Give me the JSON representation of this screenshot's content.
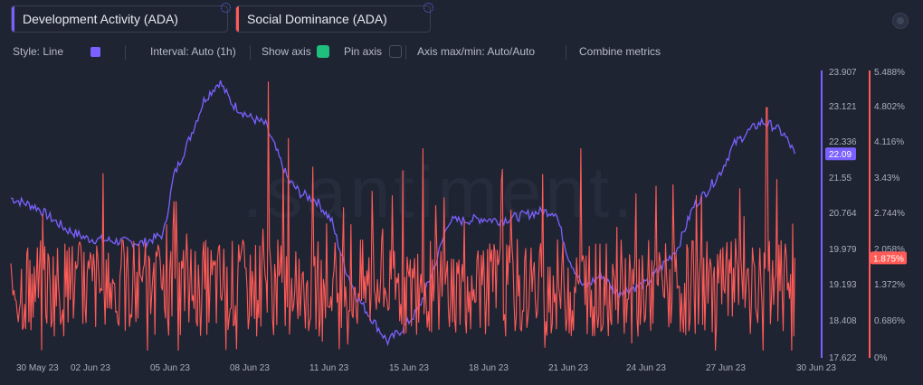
{
  "metrics": [
    {
      "label": "Development Activity (ADA)",
      "color": "#7b61ff"
    },
    {
      "label": "Social Dominance (ADA)",
      "color": "#ff5b57"
    }
  ],
  "settings": {
    "style": "Style: Line",
    "interval": "Interval: Auto (1h)",
    "show_axis": "Show axis",
    "pin_axis": "Pin axis",
    "axis_maxmin": "Axis max/min: Auto/Auto",
    "combine": "Combine metrics"
  },
  "watermark": ".santiment.",
  "chart_data": {
    "type": "line",
    "x_range": [
      "2023-05-29",
      "2023-06-30"
    ],
    "x_tick_labels": [
      "30 May 23",
      "02 Jun 23",
      "05 Jun 23",
      "08 Jun 23",
      "11 Jun 23",
      "15 Jun 23",
      "18 Jun 23",
      "21 Jun 23",
      "24 Jun 23",
      "27 Jun 23",
      "30 Jun 23"
    ],
    "y_axes": [
      {
        "series": "Development Activity (ADA)",
        "ticks": [
          "23.907",
          "23.121",
          "22.336",
          "21.55",
          "20.764",
          "19.979",
          "19.193",
          "18.408",
          "17.622"
        ],
        "range": [
          17.622,
          23.907
        ],
        "current": "22.09"
      },
      {
        "series": "Social Dominance (ADA)",
        "ticks": [
          "5.488%",
          "4.802%",
          "4.116%",
          "3.43%",
          "2.744%",
          "2.058%",
          "1.372%",
          "0.686%",
          "0%"
        ],
        "range": [
          0,
          5.488
        ],
        "current": "1.875%"
      }
    ],
    "series": [
      {
        "name": "Development Activity (ADA)",
        "color": "#7b61ff",
        "anchors": [
          [
            0,
            21.1
          ],
          [
            1.0,
            20.9
          ],
          [
            2.2,
            20.4
          ],
          [
            3.0,
            20.2
          ],
          [
            4.0,
            20.15
          ],
          [
            5.2,
            20.1
          ],
          [
            6.0,
            20.3
          ],
          [
            6.4,
            21.6
          ],
          [
            7.0,
            22.4
          ],
          [
            7.6,
            23.3
          ],
          [
            8.2,
            23.7
          ],
          [
            8.7,
            23.2
          ],
          [
            9.4,
            22.9
          ],
          [
            10.0,
            22.75
          ],
          [
            10.4,
            22.2
          ],
          [
            10.9,
            21.5
          ],
          [
            11.4,
            21.2
          ],
          [
            12.0,
            21.05
          ],
          [
            12.6,
            20.6
          ],
          [
            13.1,
            19.6
          ],
          [
            13.6,
            18.9
          ],
          [
            14.2,
            18.4
          ],
          [
            14.8,
            17.9
          ],
          [
            15.4,
            18.2
          ],
          [
            16.0,
            18.6
          ],
          [
            16.6,
            19.5
          ],
          [
            17.2,
            20.6
          ],
          [
            17.8,
            20.6
          ],
          [
            18.5,
            20.65
          ],
          [
            19.2,
            20.6
          ],
          [
            20.0,
            20.7
          ],
          [
            20.8,
            20.8
          ],
          [
            21.4,
            20.8
          ],
          [
            21.9,
            19.8
          ],
          [
            22.5,
            19.1
          ],
          [
            23.2,
            19.4
          ],
          [
            23.8,
            19.0
          ],
          [
            24.4,
            19.1
          ],
          [
            25.0,
            19.2
          ],
          [
            25.6,
            19.6
          ],
          [
            26.2,
            20.0
          ],
          [
            26.8,
            20.9
          ],
          [
            27.4,
            21.3
          ],
          [
            27.9,
            21.7
          ],
          [
            28.4,
            22.3
          ],
          [
            29.0,
            22.6
          ],
          [
            29.5,
            22.8
          ],
          [
            30.0,
            22.7
          ],
          [
            30.4,
            22.5
          ],
          [
            30.8,
            22.09
          ]
        ]
      },
      {
        "name": "Social Dominance (ADA)",
        "color": "#ff5b57",
        "peaks": [
          [
            10.1,
            5.3
          ],
          [
            10.9,
            4.2
          ],
          [
            16.2,
            4.0
          ],
          [
            19.3,
            3.6
          ],
          [
            22.4,
            4.0
          ],
          [
            26.0,
            3.3
          ],
          [
            29.7,
            4.8
          ],
          [
            30.1,
            3.4
          ]
        ],
        "baseline": 1.3,
        "end": 1.875
      }
    ]
  }
}
